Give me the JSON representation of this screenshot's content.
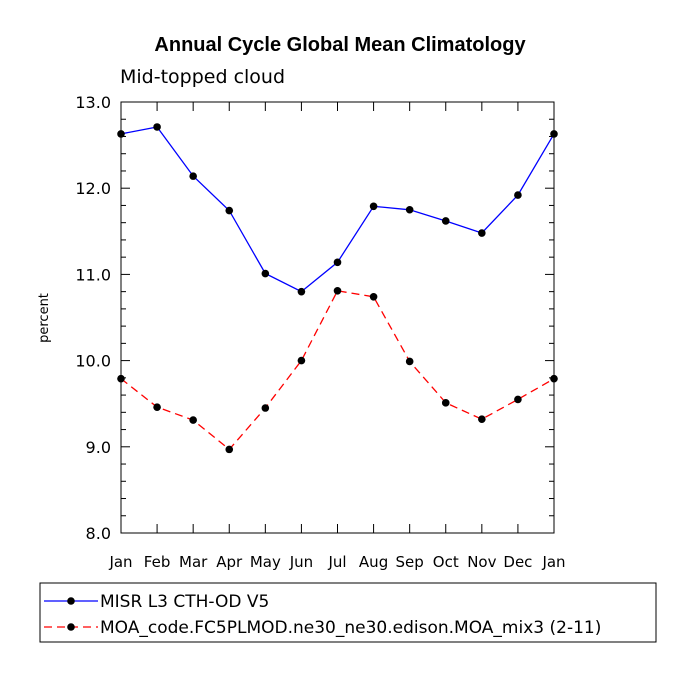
{
  "chart_data": {
    "type": "line",
    "title": "Annual Cycle Global Mean Climatology",
    "subtitle": "Mid-topped cloud",
    "ylabel": "percent",
    "xlabel": "",
    "ylim": [
      8.0,
      13.0
    ],
    "yticks": [
      "8.0",
      "9.0",
      "10.0",
      "11.0",
      "12.0",
      "13.0"
    ],
    "categories": [
      "Jan",
      "Feb",
      "Mar",
      "Apr",
      "May",
      "Jun",
      "Jul",
      "Aug",
      "Sep",
      "Oct",
      "Nov",
      "Dec",
      "Jan"
    ],
    "series": [
      {
        "name": "MISR L3 CTH-OD V5",
        "color": "#0000ff",
        "dashed": false,
        "values": [
          12.63,
          12.71,
          12.14,
          11.74,
          11.01,
          10.8,
          11.14,
          11.79,
          11.75,
          11.62,
          11.48,
          11.92,
          12.63
        ]
      },
      {
        "name": "MOA_code.FC5PLMOD.ne30_ne30.edison.MOA_mix3 (2-11)",
        "color": "#ff0000",
        "dashed": true,
        "values": [
          9.79,
          9.46,
          9.31,
          8.97,
          9.45,
          10.0,
          10.81,
          10.74,
          9.99,
          9.51,
          9.32,
          9.55,
          9.79
        ]
      }
    ],
    "legend_position": "bottom-left"
  }
}
